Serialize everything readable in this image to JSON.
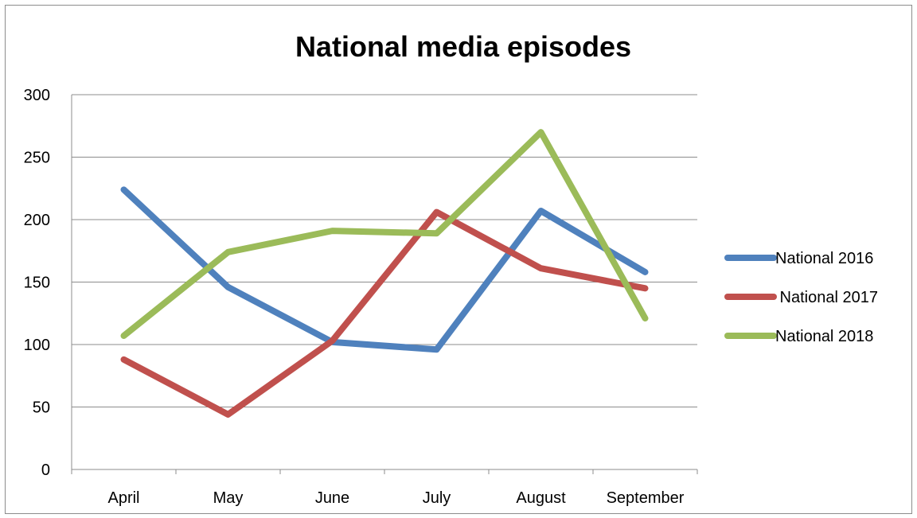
{
  "chart_data": {
    "type": "line",
    "title": "National media episodes",
    "xlabel": "",
    "ylabel": "",
    "categories": [
      "April",
      "May",
      "June",
      "July",
      "August",
      "September"
    ],
    "ylim": [
      0,
      300
    ],
    "yticks": [
      0,
      50,
      100,
      150,
      200,
      250,
      300
    ],
    "grid": true,
    "legend": "right",
    "series": [
      {
        "name": "National 2016",
        "color": "#4f81bd",
        "values": [
          224,
          146,
          102,
          96,
          207,
          158
        ]
      },
      {
        "name": " National 2017",
        "color": "#c0504d",
        "values": [
          88,
          44,
          103,
          206,
          161,
          145
        ]
      },
      {
        "name": "National 2018",
        "color": "#9bbb59",
        "values": [
          107,
          174,
          191,
          189,
          270,
          121
        ]
      }
    ]
  }
}
